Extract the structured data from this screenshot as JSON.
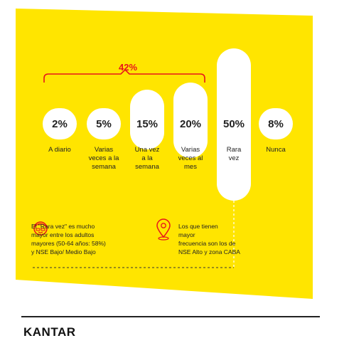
{
  "colors": {
    "background_panel": "#FFE500",
    "accent": "#E8151B",
    "text": "#222222",
    "pill": "#FFFFFF"
  },
  "chart_data": {
    "type": "bar",
    "categories": [
      "A diario",
      "Varias veces a la semana",
      "Una vez a la semana",
      "Varias veces al mes",
      "Rara vez",
      "Nunca"
    ],
    "category_labels": [
      "A diario",
      "Varias\nveces a la\nsemana",
      "Una vez\na la\nsemana",
      "Varias\nveces al\nmes",
      "Rara\nvez",
      "Nunca"
    ],
    "values": [
      2,
      5,
      15,
      20,
      50,
      8
    ],
    "value_labels": [
      "2%",
      "5%",
      "15%",
      "20%",
      "50%",
      "8%"
    ],
    "bracket": {
      "label": "42%",
      "value": 42,
      "spans": [
        "A diario",
        "Varias veces a la semana",
        "Una vez a la semana",
        "Varias veces al mes"
      ]
    }
  },
  "notes": {
    "left": "El \"Rara vez\" es mucho\nmayor entre los adultos\nmayores (50-64 años: 58%)\ny NSE Bajo/ Medio Bajo",
    "right": "Los que tienen\nmayor\nfrecuencia  son los de\nNSE Alto y zona CABA",
    "left_icon": "face-icon",
    "right_icon": "location-pin-icon"
  },
  "footer": {
    "brand": "KANTAR"
  }
}
